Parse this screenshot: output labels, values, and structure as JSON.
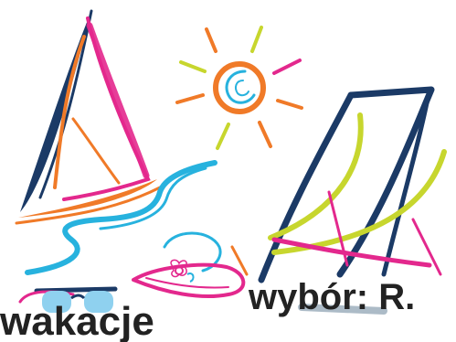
{
  "captions": {
    "right": "wybór: R.",
    "left": "wakacje"
  },
  "colors": {
    "navy": "#1b3a66",
    "magenta": "#e3288d",
    "orange": "#f07a28",
    "cyan": "#27b2de",
    "lime": "#c7d62e",
    "lightblue": "#8fd1ef",
    "text": "#222222"
  },
  "icons": {
    "sailboat": "sailboat-icon",
    "sun": "sun-icon",
    "deck_chair": "deck-chair-icon",
    "sunglasses": "sunglasses-icon",
    "sun_hat": "sun-hat-icon",
    "waves": "waves-icon"
  }
}
